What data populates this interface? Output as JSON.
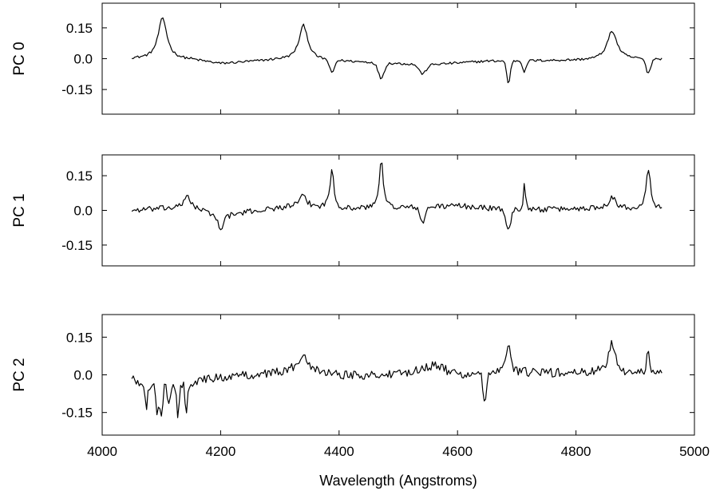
{
  "chart_data": {
    "type": "line",
    "layout": "stacked-panels",
    "xlabel": "Wavelength (Angstroms)",
    "xlim": [
      4000,
      5000
    ],
    "xticks": [
      4000,
      4200,
      4400,
      4600,
      4800,
      5000
    ],
    "x_tick_labels": [
      "4000",
      "4200",
      "4400",
      "4600",
      "4800",
      "5000"
    ],
    "x_tick_labels_on": "bottom-panel-only",
    "grid": false,
    "panels": [
      {
        "ylabel": "PC 0",
        "ylim": [
          -0.27,
          0.27
        ],
        "yticks": [
          0.15,
          0.0,
          -0.15
        ],
        "y_tick_labels": [
          "0.15",
          "0.0",
          "-0.15"
        ],
        "series": {
          "x_start": 4050,
          "x_end": 4945,
          "step": 5,
          "baseline": [
            [
              4050,
              0.0
            ],
            [
              4150,
              -0.006
            ],
            [
              4200,
              -0.025
            ],
            [
              4300,
              -0.005
            ],
            [
              4400,
              -0.012
            ],
            [
              4550,
              -0.03
            ],
            [
              4650,
              -0.012
            ],
            [
              4800,
              -0.008
            ],
            [
              4945,
              -0.002
            ]
          ],
          "features": [
            {
              "x": 4102,
              "y": 0.2,
              "w": 9,
              "shape": "lorentz"
            },
            {
              "x": 4340,
              "y": 0.17,
              "w": 9,
              "shape": "lorentz"
            },
            {
              "x": 4861,
              "y": 0.14,
              "w": 10,
              "shape": "lorentz"
            },
            {
              "x": 4388,
              "y": -0.065,
              "w": 4
            },
            {
              "x": 4471,
              "y": -0.075,
              "w": 5
            },
            {
              "x": 4541,
              "y": -0.045,
              "w": 6
            },
            {
              "x": 4686,
              "y": -0.11,
              "w": 3
            },
            {
              "x": 4713,
              "y": -0.055,
              "w": 3
            },
            {
              "x": 4922,
              "y": -0.07,
              "w": 4
            }
          ],
          "noise": 0.006
        }
      },
      {
        "ylabel": "PC 1",
        "ylim": [
          -0.24,
          0.24
        ],
        "yticks": [
          0.15,
          0.0,
          -0.15
        ],
        "y_tick_labels": [
          "0.15",
          "0.0",
          "-0.15"
        ],
        "series": {
          "x_start": 4050,
          "x_end": 4945,
          "step": 5,
          "baseline": [
            [
              4050,
              0.0
            ],
            [
              4150,
              0.015
            ],
            [
              4200,
              -0.03
            ],
            [
              4250,
              -0.005
            ],
            [
              4330,
              0.02
            ],
            [
              4400,
              0.005
            ],
            [
              4500,
              0.01
            ],
            [
              4600,
              0.02
            ],
            [
              4700,
              0.0
            ],
            [
              4850,
              0.01
            ],
            [
              4945,
              0.0
            ]
          ],
          "features": [
            {
              "x": 4144,
              "y": 0.055,
              "w": 5,
              "shape": "lorentz"
            },
            {
              "x": 4200,
              "y": -0.045,
              "w": 5
            },
            {
              "x": 4340,
              "y": 0.045,
              "w": 6,
              "shape": "lorentz"
            },
            {
              "x": 4388,
              "y": 0.17,
              "w": 4,
              "shape": "lorentz"
            },
            {
              "x": 4471,
              "y": 0.21,
              "w": 4,
              "shape": "lorentz"
            },
            {
              "x": 4541,
              "y": -0.075,
              "w": 4
            },
            {
              "x": 4686,
              "y": -0.085,
              "w": 4
            },
            {
              "x": 4713,
              "y": 0.12,
              "w": 2,
              "shape": "lorentz"
            },
            {
              "x": 4861,
              "y": 0.05,
              "w": 7,
              "shape": "lorentz"
            },
            {
              "x": 4922,
              "y": 0.17,
              "w": 5,
              "shape": "lorentz"
            }
          ],
          "noise": 0.012
        }
      },
      {
        "ylabel": "PC 2",
        "ylim": [
          -0.24,
          0.24
        ],
        "yticks": [
          0.15,
          0.0,
          -0.15
        ],
        "y_tick_labels": [
          "0.15",
          "0.0",
          "-0.15"
        ],
        "series": {
          "x_start": 4050,
          "x_end": 4945,
          "step": 5,
          "baseline": [
            [
              4050,
              -0.02
            ],
            [
              4100,
              -0.05
            ],
            [
              4200,
              -0.01
            ],
            [
              4300,
              0.01
            ],
            [
              4340,
              0.03
            ],
            [
              4400,
              0.0
            ],
            [
              4500,
              0.0
            ],
            [
              4560,
              0.04
            ],
            [
              4600,
              0.0
            ],
            [
              4700,
              0.01
            ],
            [
              4945,
              0.0
            ]
          ],
          "features": [
            {
              "x": 4075,
              "y": -0.09,
              "w": 2
            },
            {
              "x": 4093,
              "y": -0.12,
              "w": 2
            },
            {
              "x": 4100,
              "y": -0.13,
              "w": 2
            },
            {
              "x": 4112,
              "y": -0.09,
              "w": 2
            },
            {
              "x": 4128,
              "y": -0.12,
              "w": 2
            },
            {
              "x": 4142,
              "y": -0.11,
              "w": 2
            },
            {
              "x": 4340,
              "y": 0.06,
              "w": 7,
              "shape": "lorentz"
            },
            {
              "x": 4646,
              "y": -0.11,
              "w": 3
            },
            {
              "x": 4686,
              "y": 0.11,
              "w": 4,
              "shape": "lorentz"
            },
            {
              "x": 4861,
              "y": 0.12,
              "w": 8,
              "shape": "lorentz"
            },
            {
              "x": 4922,
              "y": 0.09,
              "w": 3,
              "shape": "lorentz"
            }
          ],
          "noise": 0.018
        }
      }
    ]
  }
}
